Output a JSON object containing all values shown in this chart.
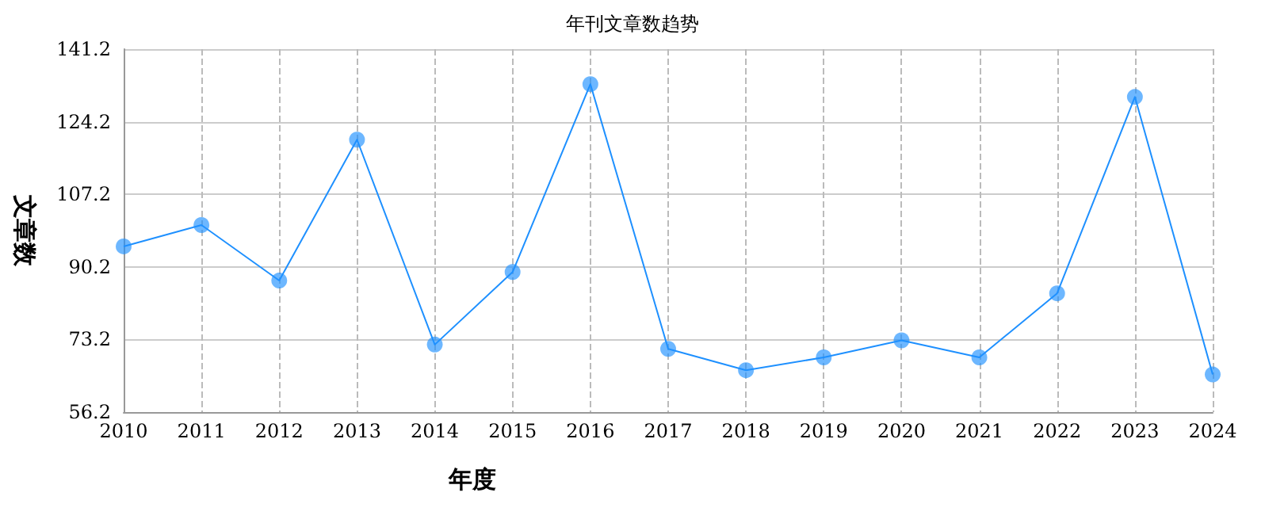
{
  "chart_data": {
    "type": "line",
    "title": "年刊文章数趋势",
    "xlabel": "年度",
    "ylabel": "文章数",
    "categories": [
      "2010",
      "2011",
      "2012",
      "2013",
      "2014",
      "2015",
      "2016",
      "2017",
      "2018",
      "2019",
      "2020",
      "2021",
      "2022",
      "2023",
      "2024"
    ],
    "series": [
      {
        "color": "#1e90ff",
        "values": [
          95,
          100,
          87,
          120,
          72,
          89,
          133,
          71,
          66,
          69,
          73,
          69,
          84,
          130,
          65
        ]
      }
    ],
    "ylim": [
      56.2,
      141.2
    ],
    "yticks": [
      56.2,
      73.2,
      90.2,
      107.2,
      124.2,
      141.2
    ],
    "grid": true,
    "marker": "circle",
    "line_style": "solid"
  }
}
